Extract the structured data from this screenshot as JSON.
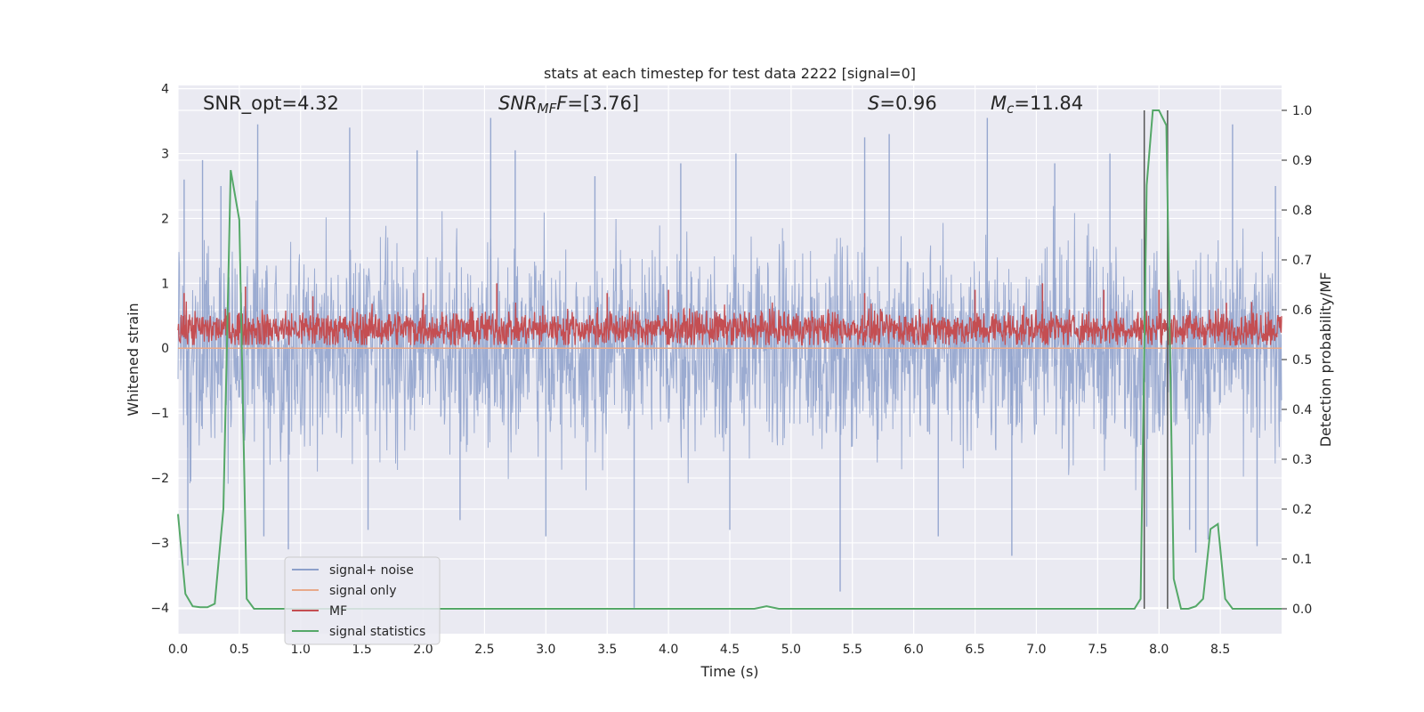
{
  "chart_data": {
    "type": "line",
    "title": "stats at each timestep for test data 2222 [signal=0]",
    "xlabel": "Time (s)",
    "ylabel": "Whitened strain",
    "ylabel_right": "Detection probability/MF",
    "xlim": [
      0.0,
      9.0
    ],
    "ylim": [
      -4.4,
      4.05
    ],
    "ylim_right": [
      -0.05,
      1.05
    ],
    "x_ticks": [
      0.0,
      0.5,
      1.0,
      1.5,
      2.0,
      2.5,
      3.0,
      3.5,
      4.0,
      4.5,
      5.0,
      5.5,
      6.0,
      6.5,
      7.0,
      7.5,
      8.0,
      8.5
    ],
    "x_tick_labels": [
      "0.0",
      "0.5",
      "1.0",
      "1.5",
      "2.0",
      "2.5",
      "3.0",
      "3.5",
      "4.0",
      "4.5",
      "5.0",
      "5.5",
      "6.0",
      "6.5",
      "7.0",
      "7.5",
      "8.0",
      "8.5"
    ],
    "y_ticks": [
      4,
      3,
      2,
      1,
      0,
      -1,
      -2,
      -3,
      -4
    ],
    "y_tick_labels": [
      "4",
      "3",
      "2",
      "1",
      "0",
      "−1",
      "−2",
      "−3",
      "−4"
    ],
    "y_right_ticks": [
      1.0,
      0.9,
      0.8,
      0.7,
      0.6,
      0.5,
      0.4,
      0.3,
      0.2,
      0.1,
      0.0
    ],
    "y_right_tick_labels": [
      "1.0",
      "0.9",
      "0.8",
      "0.7",
      "0.6",
      "0.5",
      "0.4",
      "0.3",
      "0.2",
      "0.1",
      "0.0"
    ],
    "annotations": {
      "snr_opt": "SNR_opt=4.32",
      "snr_mf_main": "SNR",
      "snr_mf_sub": "MF",
      "snr_mf_value": "=[3.76]",
      "s_sym": "S",
      "s_value": "=0.96",
      "mc_main": "M",
      "mc_sub": "c",
      "mc_value": "=11.84"
    },
    "legend": {
      "placement": "lower-left",
      "entries": [
        {
          "label": "signal+ noise",
          "color": "#8da0cb"
        },
        {
          "label": "signal only",
          "color": "#e8a98b"
        },
        {
          "label": "MF",
          "color": "#c44e52"
        },
        {
          "label": "signal statistics",
          "color": "#55a868"
        }
      ]
    },
    "series": [
      {
        "name": "signal+ noise",
        "axis": "left",
        "description": "whitened noise, dense band roughly between -2 and 2.2 with spikes",
        "band_low": -1.75,
        "band_high": 1.75,
        "spikes": [
          [
            0.05,
            2.6
          ],
          [
            0.08,
            -3.35
          ],
          [
            0.2,
            2.9
          ],
          [
            0.35,
            2.5
          ],
          [
            0.65,
            3.45
          ],
          [
            0.7,
            -2.9
          ],
          [
            0.9,
            -3.1
          ],
          [
            1.4,
            3.4
          ],
          [
            1.55,
            -2.8
          ],
          [
            1.95,
            3.05
          ],
          [
            2.3,
            -2.65
          ],
          [
            2.55,
            3.55
          ],
          [
            2.75,
            3.05
          ],
          [
            3.0,
            -2.9
          ],
          [
            3.4,
            2.65
          ],
          [
            3.72,
            -4.0
          ],
          [
            4.1,
            2.85
          ],
          [
            4.5,
            -2.8
          ],
          [
            4.55,
            3.0
          ],
          [
            5.4,
            -3.75
          ],
          [
            5.6,
            3.25
          ],
          [
            5.8,
            3.3
          ],
          [
            6.2,
            -2.9
          ],
          [
            6.6,
            3.55
          ],
          [
            6.8,
            -3.2
          ],
          [
            7.15,
            2.85
          ],
          [
            7.6,
            3.0
          ],
          [
            7.9,
            -2.75
          ],
          [
            8.25,
            -2.8
          ],
          [
            8.3,
            -3.15
          ],
          [
            8.4,
            -2.95
          ],
          [
            8.6,
            3.45
          ],
          [
            8.8,
            -3.05
          ],
          [
            8.95,
            2.5
          ]
        ],
        "color": "#8da0cb"
      },
      {
        "name": "signal only",
        "axis": "left",
        "x": [
          0.0,
          9.0
        ],
        "y": [
          0.0,
          0.0
        ],
        "color": "#e8a98b"
      },
      {
        "name": "MF",
        "axis": "left",
        "description": "matched filter output mostly between 0 and 0.7",
        "band_low": 0.05,
        "band_high": 0.65,
        "spikes": [
          [
            0.05,
            0.85
          ],
          [
            0.55,
            0.95
          ],
          [
            1.1,
            0.8
          ],
          [
            2.0,
            0.85
          ],
          [
            2.6,
            1.0
          ],
          [
            3.5,
            0.85
          ],
          [
            4.0,
            0.9
          ],
          [
            5.6,
            0.85
          ],
          [
            6.5,
            0.9
          ],
          [
            7.05,
            1.0
          ],
          [
            7.55,
            0.9
          ],
          [
            8.0,
            0.9
          ],
          [
            8.55,
            0.7
          ]
        ],
        "color": "#c44e52"
      },
      {
        "name": "signal statistics",
        "axis": "right",
        "x": [
          0.0,
          0.06,
          0.12,
          0.18,
          0.24,
          0.3,
          0.37,
          0.43,
          0.5,
          0.56,
          0.62,
          2.4,
          2.5,
          4.7,
          4.8,
          4.9,
          7.8,
          7.85,
          7.9,
          7.95,
          8.0,
          8.06,
          8.12,
          8.18,
          8.24,
          8.3,
          8.36,
          8.42,
          8.48,
          8.54,
          8.6,
          9.0
        ],
        "y": [
          0.19,
          0.03,
          0.005,
          0.003,
          0.003,
          0.01,
          0.2,
          0.88,
          0.78,
          0.02,
          0.0,
          0.0,
          0.0,
          0.0,
          0.005,
          0.0,
          0.0,
          0.02,
          0.85,
          1.0,
          1.0,
          0.97,
          0.06,
          0.0,
          0.0,
          0.005,
          0.02,
          0.16,
          0.17,
          0.02,
          0.0,
          0.0
        ],
        "color": "#55a868"
      }
    ],
    "vlines": [
      7.88,
      8.07
    ]
  }
}
